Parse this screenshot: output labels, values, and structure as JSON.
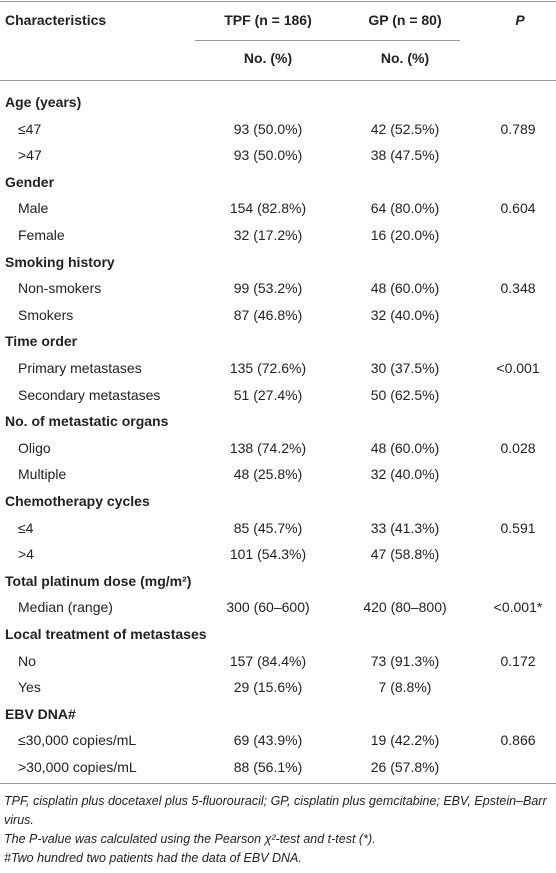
{
  "table": {
    "header": {
      "characteristics": "Characteristics",
      "tpf": "TPF (n = 186)",
      "gp": "GP (n = 80)",
      "p": "P",
      "tpf_unit": "No. (%)",
      "gp_unit": "No. (%)"
    },
    "sections": [
      {
        "title": "Age (years)",
        "rows": [
          {
            "label": "≤47",
            "tpf": "93 (50.0%)",
            "gp": "42 (52.5%)",
            "p": "0.789"
          },
          {
            "label": ">47",
            "tpf": "93 (50.0%)",
            "gp": "38 (47.5%)"
          }
        ]
      },
      {
        "title": "Gender",
        "rows": [
          {
            "label": "Male",
            "tpf": "154 (82.8%)",
            "gp": "64 (80.0%)",
            "p": "0.604"
          },
          {
            "label": "Female",
            "tpf": "32 (17.2%)",
            "gp": "16 (20.0%)"
          }
        ]
      },
      {
        "title": "Smoking history",
        "rows": [
          {
            "label": "Non-smokers",
            "tpf": "99 (53.2%)",
            "gp": "48 (60.0%)",
            "p": "0.348"
          },
          {
            "label": "Smokers",
            "tpf": "87 (46.8%)",
            "gp": "32 (40.0%)"
          }
        ]
      },
      {
        "title": "Time order",
        "rows": [
          {
            "label": "Primary metastases",
            "tpf": "135 (72.6%)",
            "gp": "30 (37.5%)",
            "p": "<0.001"
          },
          {
            "label": "Secondary metastases",
            "tpf": "51 (27.4%)",
            "gp": "50 (62.5%)"
          }
        ]
      },
      {
        "title": "No. of metastatic organs",
        "rows": [
          {
            "label": "Oligo",
            "tpf": "138 (74.2%)",
            "gp": "48 (60.0%)",
            "p": "0.028"
          },
          {
            "label": "Multiple",
            "tpf": "48 (25.8%)",
            "gp": "32 (40.0%)"
          }
        ]
      },
      {
        "title": "Chemotherapy cycles",
        "rows": [
          {
            "label": "≤4",
            "tpf": "85 (45.7%)",
            "gp": "33 (41.3%)",
            "p": "0.591"
          },
          {
            "label": ">4",
            "tpf": "101 (54.3%)",
            "gp": "47 (58.8%)"
          }
        ]
      },
      {
        "title": "Total platinum dose (mg/m²)",
        "rows": [
          {
            "label": "Median (range)",
            "tpf": "300 (60–600)",
            "gp": "420 (80–800)",
            "p": "<0.001*"
          }
        ]
      },
      {
        "title": "Local treatment of metastases",
        "rows": [
          {
            "label": "No",
            "tpf": "157 (84.4%)",
            "gp": "73 (91.3%)",
            "p": "0.172"
          },
          {
            "label": "Yes",
            "tpf": "29 (15.6%)",
            "gp": "7 (8.8%)"
          }
        ]
      },
      {
        "title": "EBV DNA#",
        "rows": [
          {
            "label": "≤30,000 copies/mL",
            "tpf": "69 (43.9%)",
            "gp": "19 (42.2%)",
            "p": "0.866"
          },
          {
            "label": ">30,000 copies/mL",
            "tpf": "88 (56.1%)",
            "gp": "26 (57.8%)"
          }
        ]
      }
    ],
    "footnotes": [
      "TPF, cisplatin plus docetaxel plus 5-fluorouracil; GP, cisplatin plus gemcitabine; EBV, Epstein–Barr virus.",
      "The P-value was calculated using the Pearson χ²-test and t-test (*).",
      "#Two hundred two patients had the data of EBV DNA."
    ]
  }
}
